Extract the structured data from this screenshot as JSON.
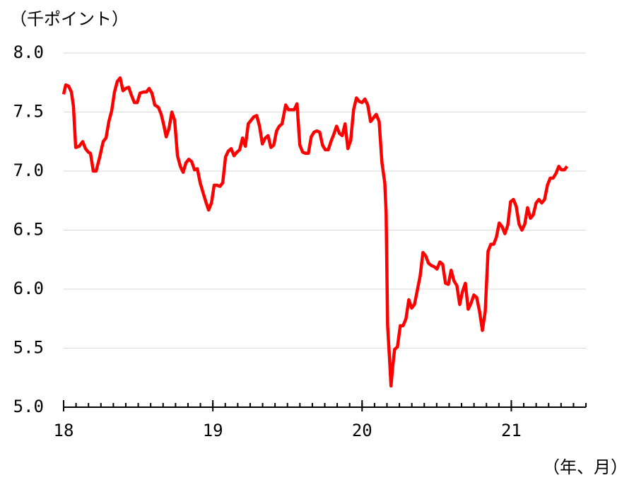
{
  "chart_data": {
    "type": "line",
    "y_label": "（千ポイント）",
    "x_label": "（年、月）",
    "xlim": [
      18,
      21.5
    ],
    "xticks": [
      18,
      19,
      20,
      21
    ],
    "ylim": [
      5,
      8
    ],
    "yticks": [
      {
        "value": 5,
        "label": "5.0"
      },
      {
        "value": 5.5,
        "label": "5.5"
      },
      {
        "value": 6,
        "label": "6.0"
      },
      {
        "value": 6.5,
        "label": "6.5"
      },
      {
        "value": 7,
        "label": "7.0"
      },
      {
        "value": 7.5,
        "label": "7.5"
      },
      {
        "value": 8,
        "label": "8.0"
      }
    ],
    "grid": true,
    "series": [
      {
        "color": "#ff0000",
        "x": [
          18.0,
          18.014,
          18.033,
          18.052,
          18.066,
          18.081,
          18.104,
          18.128,
          18.147,
          18.166,
          18.18,
          18.199,
          18.218,
          18.242,
          18.265,
          18.284,
          18.303,
          18.322,
          18.341,
          18.36,
          18.379,
          18.398,
          18.417,
          18.436,
          18.455,
          18.474,
          18.493,
          18.512,
          18.536,
          18.555,
          18.573,
          18.592,
          18.611,
          18.635,
          18.654,
          18.673,
          18.687,
          18.706,
          18.725,
          18.744,
          18.763,
          18.782,
          18.801,
          18.82,
          18.839,
          18.858,
          18.877,
          18.896,
          18.915,
          18.934,
          18.953,
          18.972,
          18.991,
          19.009,
          19.028,
          19.047,
          19.066,
          19.085,
          19.104,
          19.123,
          19.142,
          19.161,
          19.18,
          19.199,
          19.218,
          19.237,
          19.256,
          19.275,
          19.294,
          19.313,
          19.332,
          19.351,
          19.37,
          19.389,
          19.408,
          19.427,
          19.445,
          19.464,
          19.488,
          19.507,
          19.526,
          19.545,
          19.564,
          19.583,
          19.602,
          19.621,
          19.64,
          19.659,
          19.678,
          19.697,
          19.716,
          19.735,
          19.754,
          19.773,
          19.791,
          19.81,
          19.829,
          19.848,
          19.867,
          19.886,
          19.905,
          19.924,
          19.943,
          19.962,
          19.981,
          20.0,
          20.019,
          20.038,
          20.057,
          20.076,
          20.095,
          20.114,
          20.133,
          20.152,
          20.161,
          20.171,
          20.185,
          20.194,
          20.204,
          20.218,
          20.237,
          20.256,
          20.275,
          20.294,
          20.313,
          20.332,
          20.351,
          20.37,
          20.389,
          20.408,
          20.427,
          20.445,
          20.464,
          20.483,
          20.502,
          20.521,
          20.54,
          20.559,
          20.578,
          20.597,
          20.616,
          20.635,
          20.654,
          20.673,
          20.692,
          20.711,
          20.73,
          20.749,
          20.768,
          20.787,
          20.806,
          20.825,
          20.844,
          20.863,
          20.882,
          20.9,
          20.919,
          20.938,
          20.957,
          20.976,
          20.995,
          21.014,
          21.033,
          21.052,
          21.071,
          21.09,
          21.109,
          21.128,
          21.147,
          21.166,
          21.185,
          21.204,
          21.223,
          21.242,
          21.261,
          21.28,
          21.299,
          21.318,
          21.336,
          21.355,
          21.374
        ],
        "values": [
          7.65,
          7.73,
          7.72,
          7.67,
          7.55,
          7.2,
          7.21,
          7.25,
          7.19,
          7.16,
          7.15,
          7.0,
          7.0,
          7.12,
          7.25,
          7.28,
          7.42,
          7.51,
          7.67,
          7.76,
          7.79,
          7.68,
          7.7,
          7.71,
          7.64,
          7.58,
          7.58,
          7.66,
          7.67,
          7.67,
          7.7,
          7.66,
          7.56,
          7.54,
          7.48,
          7.38,
          7.29,
          7.36,
          7.5,
          7.43,
          7.13,
          7.04,
          6.99,
          7.07,
          7.1,
          7.08,
          7.01,
          7.02,
          6.9,
          6.82,
          6.74,
          6.67,
          6.73,
          6.88,
          6.88,
          6.87,
          6.9,
          7.12,
          7.17,
          7.19,
          7.13,
          7.16,
          7.18,
          7.28,
          7.21,
          7.4,
          7.43,
          7.46,
          7.47,
          7.38,
          7.23,
          7.28,
          7.3,
          7.2,
          7.22,
          7.34,
          7.38,
          7.4,
          7.56,
          7.52,
          7.52,
          7.52,
          7.57,
          7.22,
          7.16,
          7.15,
          7.15,
          7.29,
          7.33,
          7.34,
          7.33,
          7.22,
          7.18,
          7.18,
          7.25,
          7.31,
          7.38,
          7.32,
          7.3,
          7.4,
          7.19,
          7.26,
          7.52,
          7.62,
          7.59,
          7.58,
          7.61,
          7.56,
          7.42,
          7.45,
          7.48,
          7.42,
          7.07,
          6.9,
          6.65,
          5.69,
          5.39,
          5.18,
          5.33,
          5.49,
          5.51,
          5.69,
          5.69,
          5.75,
          5.91,
          5.84,
          5.87,
          5.99,
          6.11,
          6.31,
          6.28,
          6.22,
          6.2,
          6.19,
          6.17,
          6.23,
          6.21,
          6.05,
          6.04,
          6.16,
          6.07,
          6.03,
          5.87,
          5.98,
          6.05,
          5.83,
          5.88,
          5.95,
          5.93,
          5.81,
          5.65,
          5.81,
          6.32,
          6.38,
          6.38,
          6.44,
          6.56,
          6.53,
          6.47,
          6.54,
          6.74,
          6.76,
          6.7,
          6.55,
          6.5,
          6.55,
          6.69,
          6.6,
          6.63,
          6.73,
          6.76,
          6.73,
          6.76,
          6.88,
          6.94,
          6.94,
          6.98,
          7.04,
          7.01,
          7.01,
          7.04
        ]
      }
    ]
  }
}
